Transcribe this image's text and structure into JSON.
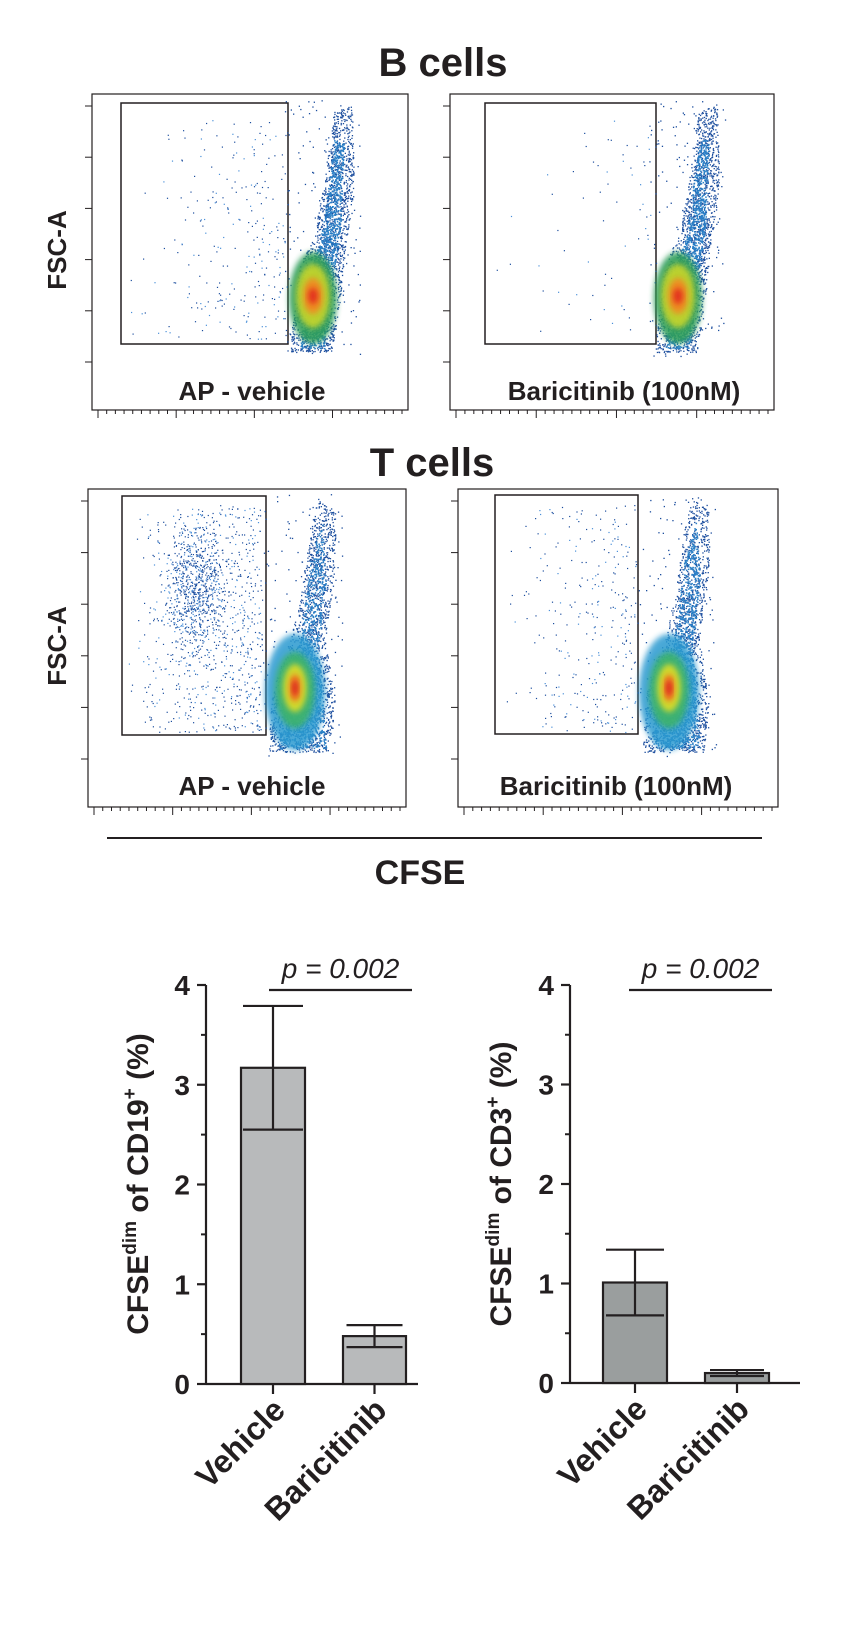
{
  "chart_data": [
    {
      "type": "scatter",
      "subtype": "flow-cytometry-density",
      "section_title": "B cells",
      "ylabel": "FSC-A",
      "xlabel": "CFSE",
      "panels": [
        {
          "label": "AP - vehicle",
          "gated_fraction": "high"
        },
        {
          "label": "Baricitinib (100nM)",
          "gated_fraction": "low"
        }
      ]
    },
    {
      "type": "scatter",
      "subtype": "flow-cytometry-density",
      "section_title": "T cells",
      "ylabel": "FSC-A",
      "xlabel": "CFSE",
      "panels": [
        {
          "label": "AP - vehicle",
          "gated_fraction": "high"
        },
        {
          "label": "Baricitinib (100nM)",
          "gated_fraction": "low"
        }
      ]
    },
    {
      "type": "bar",
      "categories": [
        "Vehicle",
        "Baricitinib"
      ],
      "values": [
        3.17,
        0.48
      ],
      "errors": [
        0.62,
        0.11
      ],
      "ylabel_main": "CFSE",
      "ylabel_sup1": "dim",
      "ylabel_mid": " of CD19",
      "ylabel_sup2": "+",
      "ylabel_end": " (%)",
      "ylim": [
        0,
        4
      ],
      "yticks": [
        "0",
        "1",
        "2",
        "3",
        "4"
      ],
      "annotation": "p = 0.002",
      "bar_color": "#b8babb"
    },
    {
      "type": "bar",
      "categories": [
        "Vehicle",
        "Baricitinib"
      ],
      "values": [
        1.01,
        0.1
      ],
      "errors": [
        0.33,
        0.03
      ],
      "ylabel_main": "CFSE",
      "ylabel_sup1": "dim",
      "ylabel_mid": " of CD3",
      "ylabel_sup2": "+",
      "ylabel_end": " (%)",
      "ylim": [
        0,
        4
      ],
      "yticks": [
        "0",
        "1",
        "2",
        "3",
        "4"
      ],
      "annotation": "p = 0.002",
      "bar_color": "#9a9e9e"
    }
  ]
}
